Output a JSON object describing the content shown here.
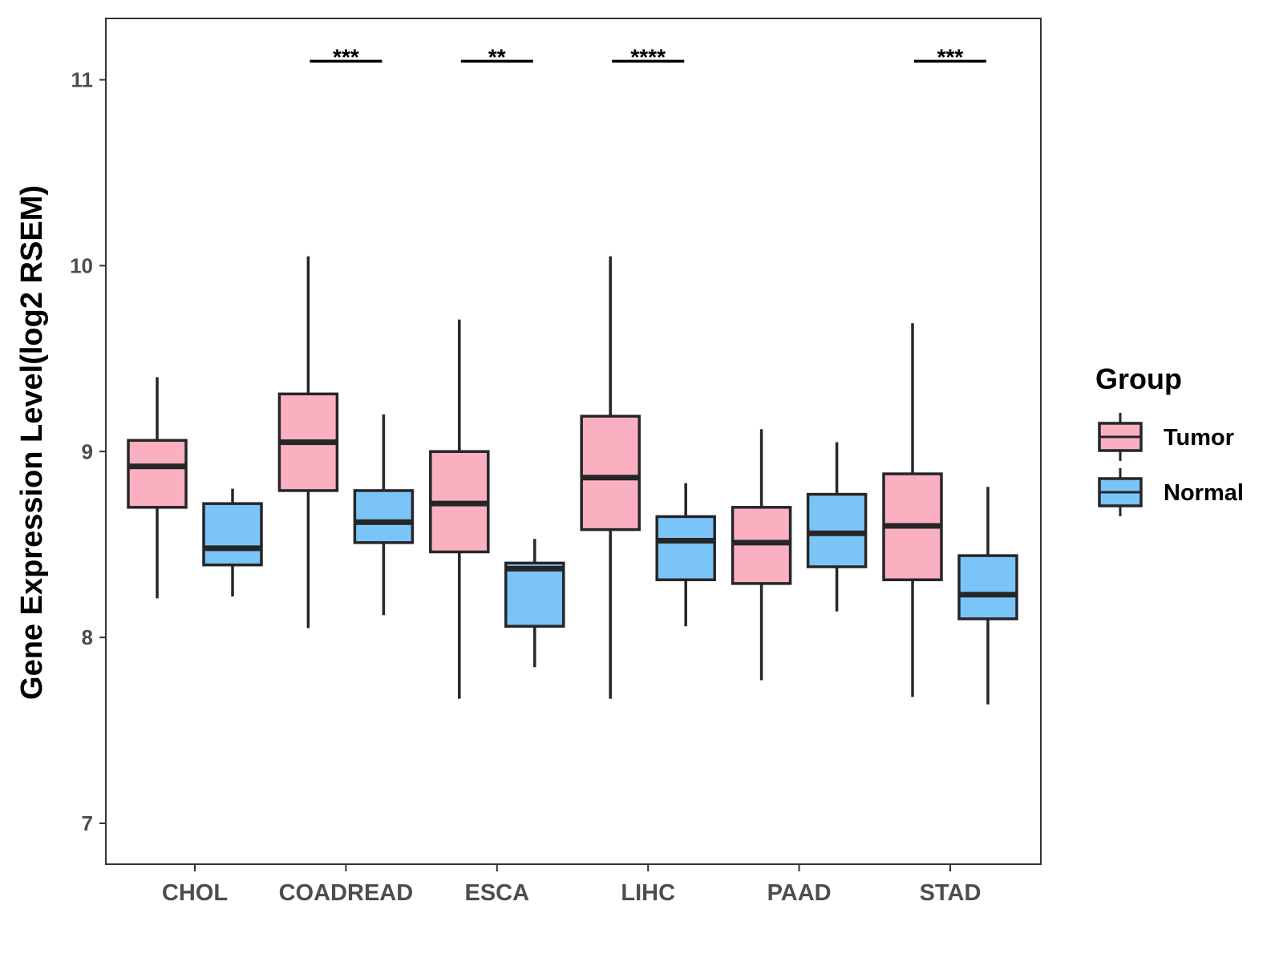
{
  "chart_data": {
    "type": "boxplot",
    "title": "",
    "xlabel": "",
    "ylabel": "Gene Expression Level(log2 RSEM)",
    "ylim": [
      6.78,
      11.33
    ],
    "yticks": [
      7,
      8,
      9,
      10,
      11
    ],
    "grid": false,
    "categories": [
      "CHOL",
      "COADREAD",
      "ESCA",
      "LIHC",
      "PAAD",
      "STAD"
    ],
    "legend": {
      "title": "Group",
      "position": "right"
    },
    "series": [
      {
        "name": "Tumor",
        "color": "#fbb0c2",
        "boxes": [
          {
            "min": 8.21,
            "q1": 8.7,
            "median": 8.92,
            "q3": 9.06,
            "max": 9.4
          },
          {
            "min": 8.05,
            "q1": 8.79,
            "median": 9.05,
            "q3": 9.31,
            "max": 10.05
          },
          {
            "min": 7.67,
            "q1": 8.46,
            "median": 8.72,
            "q3": 9.0,
            "max": 9.71
          },
          {
            "min": 7.67,
            "q1": 8.58,
            "median": 8.86,
            "q3": 9.19,
            "max": 10.05
          },
          {
            "min": 7.77,
            "q1": 8.29,
            "median": 8.51,
            "q3": 8.7,
            "max": 9.12
          },
          {
            "min": 7.68,
            "q1": 8.31,
            "median": 8.6,
            "q3": 8.88,
            "max": 9.69
          }
        ]
      },
      {
        "name": "Normal",
        "color": "#7ac4f8",
        "boxes": [
          {
            "min": 8.22,
            "q1": 8.39,
            "median": 8.48,
            "q3": 8.72,
            "max": 8.8
          },
          {
            "min": 8.12,
            "q1": 8.51,
            "median": 8.62,
            "q3": 8.79,
            "max": 9.2
          },
          {
            "min": 7.84,
            "q1": 8.06,
            "median": 8.37,
            "q3": 8.4,
            "max": 8.53
          },
          {
            "min": 8.06,
            "q1": 8.31,
            "median": 8.52,
            "q3": 8.65,
            "max": 8.83
          },
          {
            "min": 8.14,
            "q1": 8.38,
            "median": 8.56,
            "q3": 8.77,
            "max": 9.05
          },
          {
            "min": 7.64,
            "q1": 8.1,
            "median": 8.23,
            "q3": 8.44,
            "max": 8.81
          }
        ]
      }
    ],
    "significance": [
      {
        "category": "COADREAD",
        "label": "***",
        "y": 11.1
      },
      {
        "category": "ESCA",
        "label": "**",
        "y": 11.1
      },
      {
        "category": "LIHC",
        "label": "****",
        "y": 11.1
      },
      {
        "category": "STAD",
        "label": "***",
        "y": 11.1
      }
    ]
  }
}
